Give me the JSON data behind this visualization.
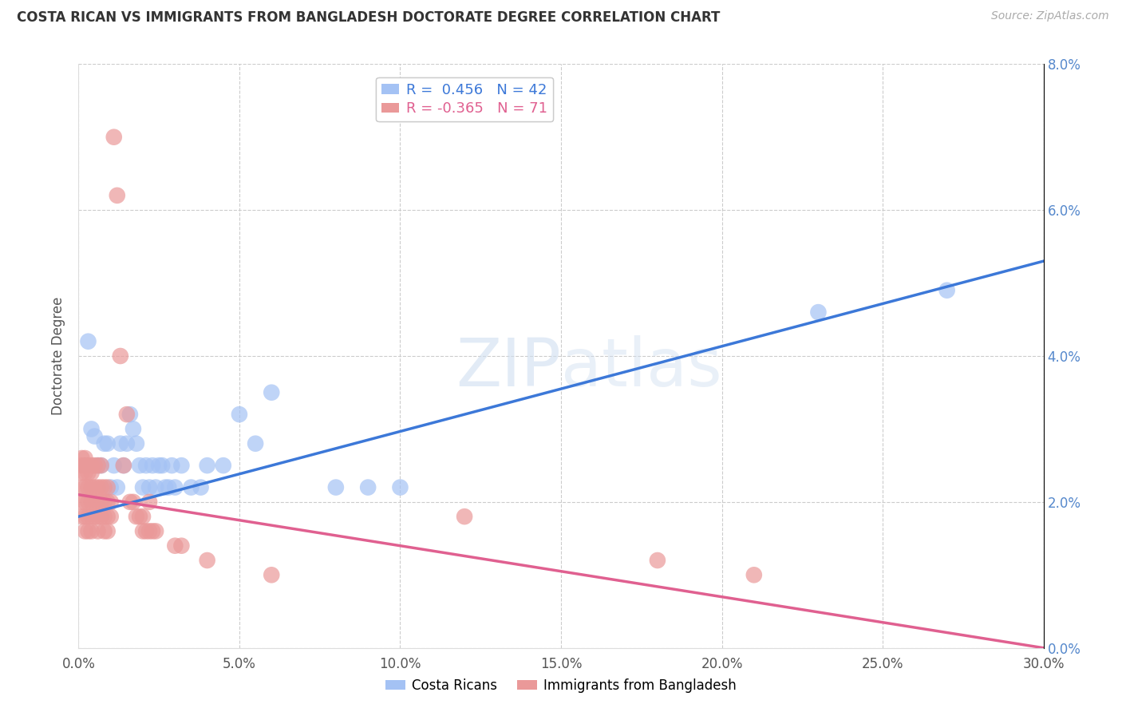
{
  "title": "COSTA RICAN VS IMMIGRANTS FROM BANGLADESH DOCTORATE DEGREE CORRELATION CHART",
  "source": "Source: ZipAtlas.com",
  "ylabel_label": "Doctorate Degree",
  "legend_bottom": [
    "Costa Ricans",
    "Immigrants from Bangladesh"
  ],
  "blue_color": "#a4c2f4",
  "pink_color": "#ea9999",
  "blue_line_color": "#3c78d8",
  "pink_line_color": "#e06090",
  "R_blue": 0.456,
  "N_blue": 42,
  "R_pink": -0.365,
  "N_pink": 71,
  "blue_scatter": [
    [
      0.002,
      0.025
    ],
    [
      0.003,
      0.042
    ],
    [
      0.004,
      0.03
    ],
    [
      0.005,
      0.029
    ],
    [
      0.006,
      0.025
    ],
    [
      0.007,
      0.025
    ],
    [
      0.008,
      0.028
    ],
    [
      0.009,
      0.028
    ],
    [
      0.01,
      0.022
    ],
    [
      0.011,
      0.025
    ],
    [
      0.012,
      0.022
    ],
    [
      0.013,
      0.028
    ],
    [
      0.014,
      0.025
    ],
    [
      0.015,
      0.028
    ],
    [
      0.016,
      0.032
    ],
    [
      0.017,
      0.03
    ],
    [
      0.018,
      0.028
    ],
    [
      0.019,
      0.025
    ],
    [
      0.02,
      0.022
    ],
    [
      0.021,
      0.025
    ],
    [
      0.022,
      0.022
    ],
    [
      0.023,
      0.025
    ],
    [
      0.024,
      0.022
    ],
    [
      0.025,
      0.025
    ],
    [
      0.026,
      0.025
    ],
    [
      0.027,
      0.022
    ],
    [
      0.028,
      0.022
    ],
    [
      0.029,
      0.025
    ],
    [
      0.03,
      0.022
    ],
    [
      0.032,
      0.025
    ],
    [
      0.035,
      0.022
    ],
    [
      0.038,
      0.022
    ],
    [
      0.04,
      0.025
    ],
    [
      0.045,
      0.025
    ],
    [
      0.05,
      0.032
    ],
    [
      0.055,
      0.028
    ],
    [
      0.06,
      0.035
    ],
    [
      0.08,
      0.022
    ],
    [
      0.09,
      0.022
    ],
    [
      0.1,
      0.022
    ],
    [
      0.23,
      0.046
    ],
    [
      0.27,
      0.049
    ]
  ],
  "pink_scatter": [
    [
      0.001,
      0.026
    ],
    [
      0.001,
      0.025
    ],
    [
      0.001,
      0.024
    ],
    [
      0.001,
      0.022
    ],
    [
      0.001,
      0.02
    ],
    [
      0.001,
      0.018
    ],
    [
      0.002,
      0.026
    ],
    [
      0.002,
      0.025
    ],
    [
      0.002,
      0.024
    ],
    [
      0.002,
      0.022
    ],
    [
      0.002,
      0.02
    ],
    [
      0.002,
      0.018
    ],
    [
      0.002,
      0.016
    ],
    [
      0.003,
      0.025
    ],
    [
      0.003,
      0.024
    ],
    [
      0.003,
      0.022
    ],
    [
      0.003,
      0.02
    ],
    [
      0.003,
      0.018
    ],
    [
      0.003,
      0.016
    ],
    [
      0.004,
      0.025
    ],
    [
      0.004,
      0.024
    ],
    [
      0.004,
      0.022
    ],
    [
      0.004,
      0.02
    ],
    [
      0.004,
      0.018
    ],
    [
      0.004,
      0.016
    ],
    [
      0.005,
      0.025
    ],
    [
      0.005,
      0.022
    ],
    [
      0.005,
      0.02
    ],
    [
      0.005,
      0.018
    ],
    [
      0.006,
      0.025
    ],
    [
      0.006,
      0.022
    ],
    [
      0.006,
      0.02
    ],
    [
      0.006,
      0.018
    ],
    [
      0.006,
      0.016
    ],
    [
      0.007,
      0.025
    ],
    [
      0.007,
      0.022
    ],
    [
      0.007,
      0.02
    ],
    [
      0.007,
      0.018
    ],
    [
      0.008,
      0.022
    ],
    [
      0.008,
      0.02
    ],
    [
      0.008,
      0.018
    ],
    [
      0.008,
      0.016
    ],
    [
      0.009,
      0.022
    ],
    [
      0.009,
      0.02
    ],
    [
      0.009,
      0.018
    ],
    [
      0.009,
      0.016
    ],
    [
      0.01,
      0.02
    ],
    [
      0.01,
      0.018
    ],
    [
      0.011,
      0.07
    ],
    [
      0.012,
      0.062
    ],
    [
      0.013,
      0.04
    ],
    [
      0.014,
      0.025
    ],
    [
      0.015,
      0.032
    ],
    [
      0.016,
      0.02
    ],
    [
      0.017,
      0.02
    ],
    [
      0.018,
      0.018
    ],
    [
      0.019,
      0.018
    ],
    [
      0.02,
      0.016
    ],
    [
      0.02,
      0.018
    ],
    [
      0.021,
      0.016
    ],
    [
      0.022,
      0.016
    ],
    [
      0.022,
      0.02
    ],
    [
      0.023,
      0.016
    ],
    [
      0.024,
      0.016
    ],
    [
      0.03,
      0.014
    ],
    [
      0.032,
      0.014
    ],
    [
      0.04,
      0.012
    ],
    [
      0.06,
      0.01
    ],
    [
      0.12,
      0.018
    ],
    [
      0.18,
      0.012
    ],
    [
      0.21,
      0.01
    ]
  ],
  "xlim": [
    0.0,
    0.3
  ],
  "ylim": [
    0.0,
    0.08
  ],
  "x_ticks": [
    0.0,
    0.05,
    0.1,
    0.15,
    0.2,
    0.25,
    0.3
  ],
  "y_ticks": [
    0.0,
    0.02,
    0.04,
    0.06,
    0.08
  ],
  "background_color": "#ffffff",
  "grid_color": "#cccccc",
  "blue_line_endpoints": [
    0.0,
    0.3,
    0.018,
    0.053
  ],
  "pink_line_endpoints": [
    0.0,
    0.3,
    0.021,
    -0.001
  ]
}
